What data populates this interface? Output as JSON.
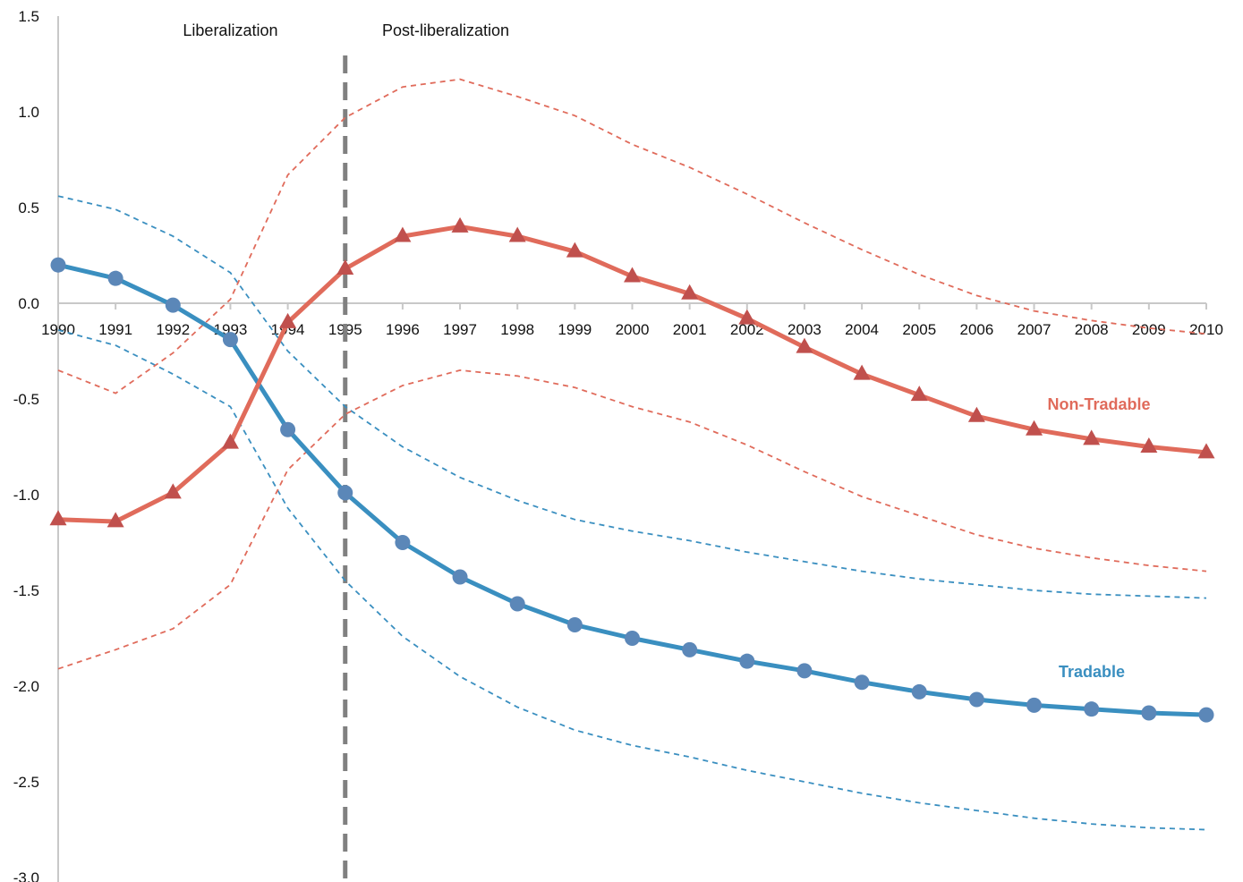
{
  "chart_data": {
    "type": "line",
    "title": "",
    "xlabel": "",
    "ylabel": "",
    "x": [
      1990,
      1991,
      1992,
      1993,
      1994,
      1995,
      1996,
      1997,
      1998,
      1999,
      2000,
      2001,
      2002,
      2003,
      2004,
      2005,
      2006,
      2007,
      2008,
      2009,
      2010
    ],
    "x_tick_labels": [
      "1990",
      "1991",
      "1992",
      "1993",
      "1994",
      "1995",
      "1996",
      "1997",
      "1998",
      "1999",
      "2000",
      "2001",
      "2002",
      "2003",
      "2004",
      "2005",
      "2006",
      "2007",
      "2008",
      "2009",
      "2010"
    ],
    "ylim": [
      -3.0,
      1.5
    ],
    "y_ticks": [
      1.5,
      1.0,
      0.5,
      0.0,
      -0.5,
      -1.0,
      -1.5,
      -2.0,
      -2.5,
      -3.0
    ],
    "y_tick_labels": [
      "1.5",
      "1.0",
      "0.5",
      "0.0",
      "-0.5",
      "-1.0",
      "-1.5",
      "-2.0",
      "-2.5",
      "-3.0"
    ],
    "grid": false,
    "annotations": [
      {
        "text": "Liberalization",
        "x": 1993
      },
      {
        "text": "Post-liberalization",
        "x": 1996.75
      }
    ],
    "reference_line": {
      "x": 1995,
      "style": "dashed",
      "color": "#808080"
    },
    "series": [
      {
        "name": "Tradable",
        "color": "#3a8fc0",
        "marker": "circle",
        "marker_color": "#5b87b8",
        "values": [
          0.2,
          0.13,
          -0.01,
          -0.19,
          -0.66,
          -0.99,
          -1.25,
          -1.43,
          -1.57,
          -1.68,
          -1.75,
          -1.81,
          -1.87,
          -1.92,
          -1.98,
          -2.03,
          -2.07,
          -2.1,
          -2.12,
          -2.14,
          -2.15
        ],
        "upper": [
          0.56,
          0.49,
          0.35,
          0.16,
          -0.25,
          -0.54,
          -0.75,
          -0.91,
          -1.03,
          -1.13,
          -1.19,
          -1.24,
          -1.3,
          -1.35,
          -1.4,
          -1.44,
          -1.47,
          -1.5,
          -1.52,
          -1.53,
          -1.54
        ],
        "lower": [
          -0.14,
          -0.22,
          -0.37,
          -0.54,
          -1.07,
          -1.45,
          -1.74,
          -1.95,
          -2.11,
          -2.23,
          -2.31,
          -2.37,
          -2.44,
          -2.5,
          -2.56,
          -2.61,
          -2.65,
          -2.69,
          -2.72,
          -2.74,
          -2.75
        ]
      },
      {
        "name": "Non-Tradable",
        "color": "#e06b5b",
        "marker": "triangle",
        "marker_color": "#c0504d",
        "values": [
          -1.13,
          -1.14,
          -0.99,
          -0.73,
          -0.1,
          0.18,
          0.35,
          0.4,
          0.35,
          0.27,
          0.14,
          0.05,
          -0.08,
          -0.23,
          -0.37,
          -0.48,
          -0.59,
          -0.66,
          -0.71,
          -0.75,
          -0.78
        ],
        "upper": [
          -0.35,
          -0.47,
          -0.26,
          0.02,
          0.67,
          0.97,
          1.13,
          1.17,
          1.08,
          0.98,
          0.83,
          0.71,
          0.57,
          0.42,
          0.28,
          0.15,
          0.04,
          -0.04,
          -0.09,
          -0.13,
          -0.16
        ],
        "lower": [
          -1.91,
          -1.81,
          -1.7,
          -1.47,
          -0.87,
          -0.58,
          -0.43,
          -0.35,
          -0.38,
          -0.44,
          -0.54,
          -0.62,
          -0.74,
          -0.88,
          -1.01,
          -1.11,
          -1.21,
          -1.28,
          -1.33,
          -1.37,
          -1.4
        ]
      }
    ]
  }
}
